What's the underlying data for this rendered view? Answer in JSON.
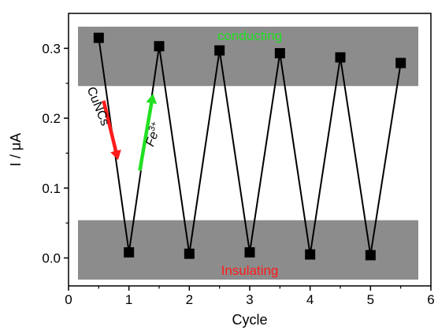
{
  "chart_data": {
    "type": "line",
    "xlabel": "Cycle",
    "ylabel": "I / μA",
    "xlim": [
      0,
      6
    ],
    "ylim": [
      -0.04,
      0.35
    ],
    "x_ticks": [
      0,
      1,
      2,
      3,
      4,
      5,
      6
    ],
    "x_tick_labels": [
      "0",
      "1",
      "2",
      "3",
      "4",
      "5",
      "6"
    ],
    "y_ticks": [
      0.0,
      0.1,
      0.2,
      0.3
    ],
    "y_tick_labels": [
      "0.0",
      "0.1",
      "0.2",
      "0.3"
    ],
    "grid": false,
    "series": [
      {
        "x": [
          0.5,
          1,
          1.5,
          2,
          2.5,
          3,
          3.5,
          4,
          4.5,
          5,
          5.5
        ],
        "y": [
          0.315,
          0.008,
          0.303,
          0.006,
          0.297,
          0.008,
          0.293,
          0.005,
          0.287,
          0.004,
          0.279
        ],
        "color": "#000000",
        "marker": "square"
      }
    ],
    "bands": [
      {
        "ymin": 0.246,
        "ymax": 0.331,
        "label": "conducting",
        "label_color": "#22e022",
        "fill": "#8c8c8c"
      },
      {
        "ymin": -0.031,
        "ymax": 0.054,
        "label": "Insulating",
        "label_color": "#ff1a1a",
        "fill": "#8c8c8c"
      }
    ],
    "annotations": [
      {
        "label": "CuNCs",
        "color": "#ff1a1a",
        "from": [
          0.58,
          0.225
        ],
        "to": [
          0.82,
          0.14
        ]
      },
      {
        "label": "Fe",
        "superscript": "3+",
        "color": "#22e022",
        "from": [
          1.18,
          0.125
        ],
        "to": [
          1.4,
          0.235
        ]
      }
    ]
  }
}
